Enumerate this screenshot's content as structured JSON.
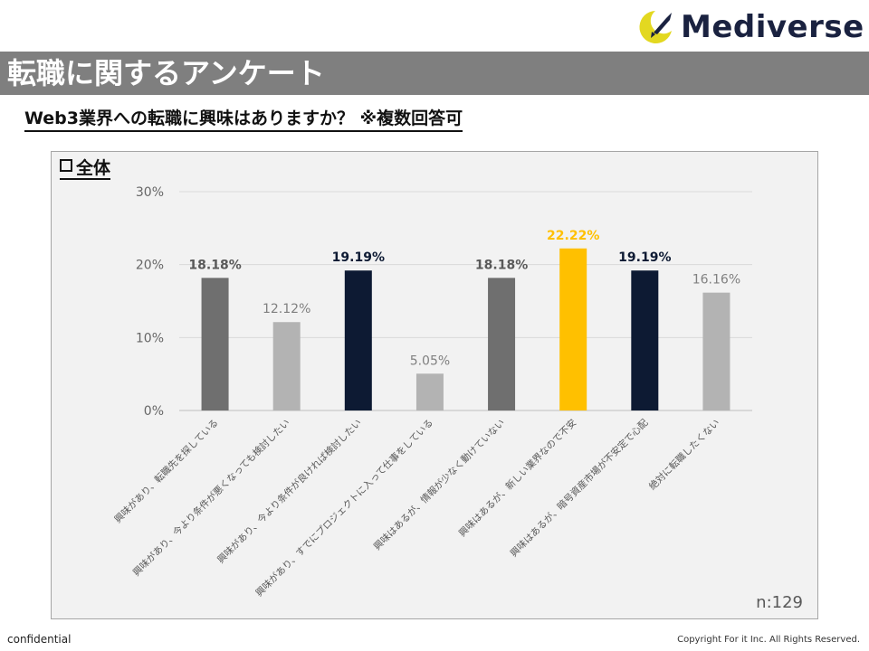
{
  "brand": {
    "name": "Mediverse"
  },
  "header": {
    "title": "転職に関するアンケート",
    "subtitle": "Web3業界への転職に興味はありますか？ ※複数回答可"
  },
  "panel": {
    "label": "全体"
  },
  "chart_data": {
    "type": "bar",
    "title": "全体",
    "categories": [
      "興味があり、転職先を探している",
      "興味があり、今より条件が悪くなっても検討したい",
      "興味があり、今より条件が良ければ検討したい",
      "興味があり、すでにプロジェクトに入って仕事をしている",
      "興味はあるが、情報が少なく動けていない",
      "興味はあるが、新しい業界なので不安",
      "興味はあるが、暗号資産市場が不安定で心配",
      "絶対に転職したくない"
    ],
    "values": [
      18.18,
      12.12,
      19.19,
      5.05,
      18.18,
      22.22,
      19.19,
      16.16
    ],
    "value_labels": [
      "18.18%",
      "12.12%",
      "19.19%",
      "5.05%",
      "18.18%",
      "22.22%",
      "19.19%",
      "16.16%"
    ],
    "bar_colors": [
      "#6f6f6f",
      "#b3b3b3",
      "#0d1a33",
      "#b3b3b3",
      "#6f6f6f",
      "#ffc000",
      "#0d1a33",
      "#b3b3b3"
    ],
    "label_colors": [
      "#595959",
      "#808080",
      "#0d1a33",
      "#808080",
      "#595959",
      "#ffc000",
      "#0d1a33",
      "#808080"
    ],
    "label_bold": [
      true,
      false,
      true,
      false,
      true,
      true,
      true,
      false
    ],
    "yticks": [
      "0%",
      "10%",
      "20%",
      "30%"
    ],
    "ylim": [
      0,
      30
    ],
    "grid": true,
    "annotation": "n:129"
  },
  "footer": {
    "left": "confidential",
    "right": "Copyright For it Inc. All Rights Reserved."
  }
}
